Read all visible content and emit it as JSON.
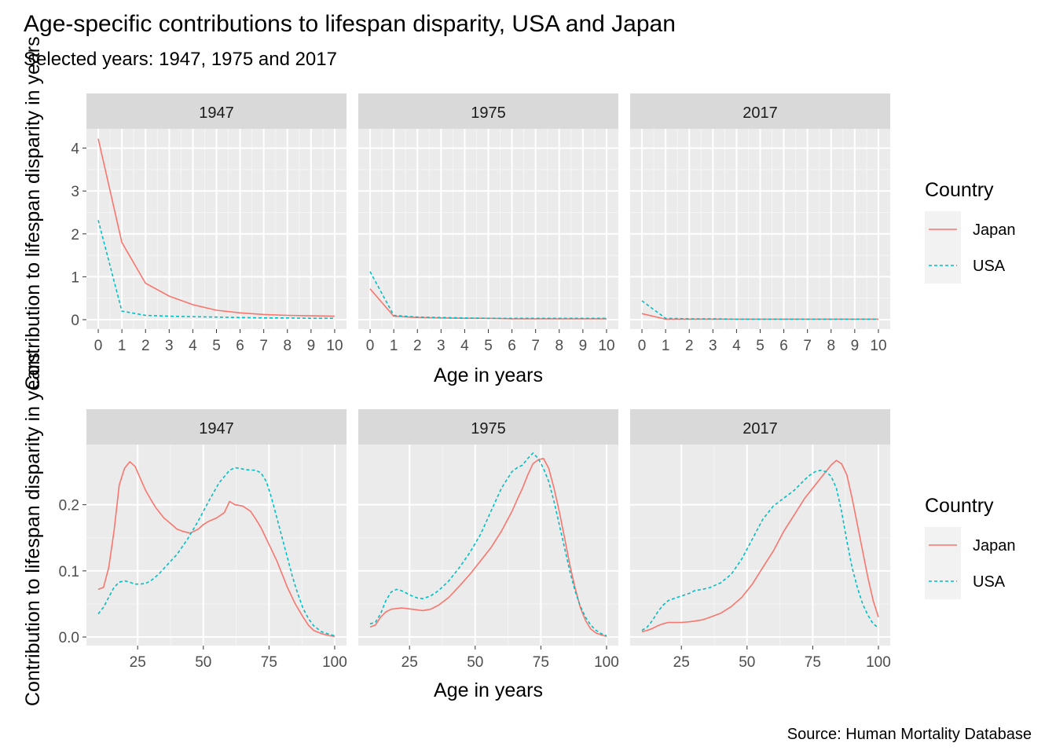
{
  "title": "Age-specific contributions to lifespan disparity, USA and Japan",
  "subtitle": "Selected years: 1947, 1975 and 2017",
  "caption": "Source: Human Mortality Database",
  "colors": {
    "Japan": "#F8766D",
    "USA": "#00BFC4"
  },
  "legends": [
    {
      "title": "Country",
      "entries": [
        {
          "label": "Japan",
          "linetype": "solid"
        },
        {
          "label": "USA",
          "linetype": "dashed"
        }
      ]
    },
    {
      "title": "Country",
      "entries": [
        {
          "label": "Japan",
          "linetype": "solid"
        },
        {
          "label": "USA",
          "linetype": "dashed"
        }
      ]
    }
  ],
  "chart_data": [
    {
      "type": "line",
      "facet": "top",
      "xlabel": "Age in years",
      "ylabel": "Contribution to lifespan disparity in years",
      "xlim": [
        -0.5,
        10.5
      ],
      "ylim": [
        -0.22,
        4.45
      ],
      "x_ticks": [
        0,
        1,
        2,
        3,
        4,
        5,
        6,
        7,
        8,
        9,
        10
      ],
      "x_tick_labels": [
        "0",
        "1",
        "2",
        "3",
        "4",
        "5",
        "6",
        "7",
        "8",
        "9",
        "10"
      ],
      "y_ticks": [
        0,
        1,
        2,
        3,
        4
      ],
      "y_tick_labels": [
        "0",
        "1",
        "2",
        "3",
        "4"
      ],
      "panels": [
        {
          "strip": "1947",
          "series": [
            {
              "name": "Japan",
              "x": [
                0,
                1,
                2,
                3,
                4,
                5,
                6,
                7,
                8,
                9,
                10
              ],
              "y": [
                4.22,
                1.8,
                0.85,
                0.55,
                0.35,
                0.22,
                0.16,
                0.12,
                0.1,
                0.09,
                0.08
              ]
            },
            {
              "name": "USA",
              "x": [
                0,
                1,
                2,
                3,
                4,
                5,
                6,
                7,
                8,
                9,
                10
              ],
              "y": [
                2.32,
                0.2,
                0.1,
                0.08,
                0.07,
                0.06,
                0.05,
                0.04,
                0.04,
                0.03,
                0.03
              ]
            }
          ]
        },
        {
          "strip": "1975",
          "series": [
            {
              "name": "Japan",
              "x": [
                0,
                1,
                2,
                3,
                4,
                5,
                6,
                7,
                8,
                9,
                10
              ],
              "y": [
                0.72,
                0.08,
                0.05,
                0.04,
                0.03,
                0.03,
                0.02,
                0.02,
                0.02,
                0.02,
                0.02
              ]
            },
            {
              "name": "USA",
              "x": [
                0,
                1,
                2,
                3,
                4,
                5,
                6,
                7,
                8,
                9,
                10
              ],
              "y": [
                1.12,
                0.1,
                0.06,
                0.05,
                0.04,
                0.03,
                0.03,
                0.03,
                0.03,
                0.03,
                0.03
              ]
            }
          ]
        },
        {
          "strip": "2017",
          "series": [
            {
              "name": "Japan",
              "x": [
                0,
                1,
                2,
                3,
                4,
                5,
                6,
                7,
                8,
                9,
                10
              ],
              "y": [
                0.14,
                0.01,
                0.01,
                0.01,
                0.01,
                0.01,
                0.01,
                0.01,
                0.01,
                0.01,
                0.01
              ]
            },
            {
              "name": "USA",
              "x": [
                0,
                1,
                2,
                3,
                4,
                5,
                6,
                7,
                8,
                9,
                10
              ],
              "y": [
                0.44,
                0.03,
                0.02,
                0.02,
                0.01,
                0.01,
                0.01,
                0.01,
                0.01,
                0.01,
                0.01
              ]
            }
          ]
        }
      ]
    },
    {
      "type": "line",
      "facet": "bottom",
      "xlabel": "Age in years",
      "ylabel": "Contribution to lifespan disparity in years",
      "xlim": [
        5.5,
        104.5
      ],
      "ylim": [
        -0.013,
        0.291
      ],
      "x_ticks": [
        25,
        50,
        75,
        100
      ],
      "x_tick_labels": [
        "25",
        "50",
        "75",
        "100"
      ],
      "y_ticks": [
        0.0,
        0.1,
        0.2
      ],
      "y_tick_labels": [
        "0.0",
        "0.1",
        "0.2"
      ],
      "panels": [
        {
          "strip": "1947",
          "series": [
            {
              "name": "Japan",
              "x": [
                10,
                12,
                14,
                16,
                18,
                20,
                22,
                24,
                26,
                28,
                30,
                32,
                35,
                38,
                40,
                42,
                45,
                48,
                50,
                52,
                55,
                58,
                60,
                62,
                65,
                68,
                70,
                72,
                75,
                78,
                80,
                82,
                85,
                88,
                90,
                92,
                95,
                98,
                100
              ],
              "y": [
                0.072,
                0.075,
                0.105,
                0.16,
                0.23,
                0.255,
                0.265,
                0.258,
                0.24,
                0.222,
                0.208,
                0.195,
                0.18,
                0.17,
                0.163,
                0.16,
                0.157,
                0.163,
                0.17,
                0.175,
                0.18,
                0.188,
                0.205,
                0.2,
                0.198,
                0.19,
                0.178,
                0.165,
                0.14,
                0.115,
                0.095,
                0.075,
                0.05,
                0.03,
                0.018,
                0.01,
                0.005,
                0.002,
                0.001
              ]
            },
            {
              "name": "USA",
              "x": [
                10,
                12,
                14,
                16,
                18,
                20,
                22,
                24,
                26,
                28,
                30,
                33,
                36,
                40,
                44,
                48,
                52,
                56,
                60,
                62,
                64,
                66,
                70,
                72,
                74,
                76,
                78,
                80,
                82,
                84,
                86,
                88,
                90,
                92,
                95,
                98,
                100
              ],
              "y": [
                0.035,
                0.045,
                0.06,
                0.075,
                0.083,
                0.085,
                0.083,
                0.08,
                0.08,
                0.081,
                0.085,
                0.095,
                0.108,
                0.125,
                0.148,
                0.175,
                0.205,
                0.233,
                0.252,
                0.256,
                0.255,
                0.253,
                0.252,
                0.248,
                0.235,
                0.21,
                0.18,
                0.15,
                0.12,
                0.09,
                0.065,
                0.043,
                0.028,
                0.017,
                0.008,
                0.004,
                0.002
              ]
            }
          ]
        },
        {
          "strip": "1975",
          "series": [
            {
              "name": "Japan",
              "x": [
                10,
                12,
                14,
                16,
                18,
                20,
                22,
                24,
                26,
                28,
                30,
                33,
                36,
                40,
                44,
                48,
                52,
                56,
                60,
                64,
                66,
                68,
                70,
                72,
                74,
                76,
                78,
                80,
                82,
                84,
                86,
                88,
                90,
                92,
                94,
                96,
                98,
                100
              ],
              "y": [
                0.015,
                0.018,
                0.03,
                0.038,
                0.042,
                0.043,
                0.044,
                0.043,
                0.042,
                0.041,
                0.04,
                0.042,
                0.048,
                0.06,
                0.077,
                0.095,
                0.115,
                0.135,
                0.16,
                0.19,
                0.208,
                0.225,
                0.245,
                0.262,
                0.268,
                0.27,
                0.255,
                0.225,
                0.19,
                0.15,
                0.11,
                0.075,
                0.045,
                0.025,
                0.012,
                0.006,
                0.003,
                0.001
              ]
            },
            {
              "name": "USA",
              "x": [
                10,
                12,
                14,
                16,
                18,
                20,
                22,
                24,
                26,
                28,
                30,
                33,
                36,
                40,
                44,
                48,
                52,
                56,
                60,
                64,
                66,
                68,
                70,
                72,
                74,
                76,
                78,
                80,
                82,
                84,
                86,
                88,
                90,
                92,
                94,
                96,
                98,
                100
              ],
              "y": [
                0.02,
                0.022,
                0.035,
                0.055,
                0.068,
                0.072,
                0.07,
                0.066,
                0.062,
                0.059,
                0.058,
                0.062,
                0.07,
                0.085,
                0.105,
                0.128,
                0.155,
                0.19,
                0.225,
                0.25,
                0.256,
                0.26,
                0.27,
                0.278,
                0.27,
                0.255,
                0.235,
                0.205,
                0.17,
                0.135,
                0.1,
                0.07,
                0.047,
                0.03,
                0.018,
                0.01,
                0.005,
                0.002
              ]
            }
          ]
        },
        {
          "strip": "2017",
          "series": [
            {
              "name": "Japan",
              "x": [
                10,
                12,
                14,
                16,
                18,
                20,
                22,
                25,
                28,
                30,
                33,
                36,
                40,
                44,
                48,
                52,
                56,
                60,
                64,
                68,
                72,
                76,
                78,
                80,
                82,
                84,
                86,
                88,
                90,
                92,
                94,
                96,
                98,
                100
              ],
              "y": [
                0.008,
                0.01,
                0.013,
                0.017,
                0.02,
                0.022,
                0.022,
                0.022,
                0.023,
                0.024,
                0.026,
                0.03,
                0.036,
                0.046,
                0.06,
                0.08,
                0.105,
                0.13,
                0.16,
                0.185,
                0.21,
                0.23,
                0.24,
                0.25,
                0.26,
                0.267,
                0.262,
                0.245,
                0.21,
                0.17,
                0.13,
                0.09,
                0.055,
                0.03
              ]
            },
            {
              "name": "USA",
              "x": [
                10,
                12,
                14,
                16,
                18,
                20,
                22,
                25,
                28,
                30,
                33,
                36,
                40,
                44,
                48,
                52,
                56,
                60,
                64,
                68,
                72,
                74,
                76,
                78,
                80,
                82,
                84,
                86,
                88,
                90,
                92,
                94,
                96,
                98,
                100
              ],
              "y": [
                0.01,
                0.015,
                0.025,
                0.038,
                0.048,
                0.055,
                0.058,
                0.062,
                0.066,
                0.07,
                0.072,
                0.075,
                0.082,
                0.095,
                0.118,
                0.148,
                0.178,
                0.198,
                0.21,
                0.222,
                0.238,
                0.245,
                0.25,
                0.252,
                0.25,
                0.243,
                0.225,
                0.19,
                0.145,
                0.105,
                0.075,
                0.05,
                0.033,
                0.02,
                0.014
              ]
            }
          ]
        }
      ]
    }
  ]
}
